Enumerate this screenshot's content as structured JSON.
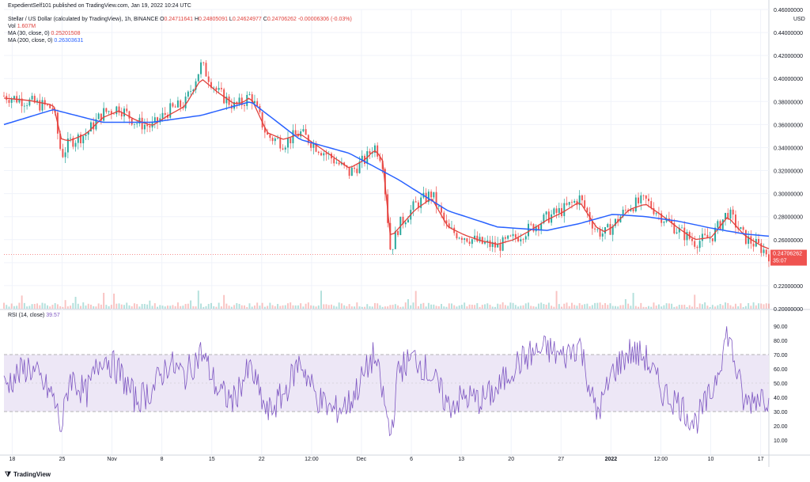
{
  "meta": {
    "publish_line": "ExpedientSelf101 published on TradingView.com, Jan 19, 2022 10:24 UTC",
    "brand": "TradingView"
  },
  "header": {
    "symbol_line": "Stellar / US Dollar (calculated by TradingView), 1h, BINANCE",
    "ohlc": [
      {
        "k": "O",
        "v": "0.24711641"
      },
      {
        "k": "H",
        "v": "0.24805091"
      },
      {
        "k": "L",
        "v": "0.24624977"
      },
      {
        "k": "C",
        "v": "0.24706262"
      },
      {
        "k": "",
        "v": "-0.00006306 (-0.03%)"
      }
    ],
    "vol_label": "Vol",
    "vol_value": "1.607M",
    "ma30_label": "MA (30, close, 0)",
    "ma30_value": "0.25201508",
    "ma200_label": "MA (200, close, 0)",
    "ma200_value": "0.26303631",
    "rsi_label": "RSI (14, close)",
    "rsi_value": "39.57"
  },
  "colors": {
    "up": "#26a69a",
    "down": "#ef5350",
    "ma30": "#e0413c",
    "ma200": "#2962ff",
    "rsi": "#7e57c2",
    "rsi_band": "#ede7f6",
    "grid": "#f0f3fa",
    "axis_text": "#131722"
  },
  "chart_data": [
    {
      "type": "candlestick",
      "title": "Stellar / US Dollar (calculated by TradingView), 1h, BINANCE",
      "price_axis_label": "USD",
      "ylim": [
        0.2,
        0.46
      ],
      "yticks": [
        "0.20000000",
        "0.22000000",
        "0.24000000",
        "0.26000000",
        "0.28000000",
        "0.30000000",
        "0.32000000",
        "0.34000000",
        "0.36000000",
        "0.38000000",
        "0.40000000",
        "0.42000000",
        "0.44000000",
        "0.46000000"
      ],
      "xticks": [
        "18",
        "25",
        "Nov",
        "8",
        "15",
        "22",
        "12:00",
        "Dec",
        "6",
        "13",
        "20",
        "27",
        "2022",
        "12:00",
        "10",
        "17"
      ],
      "grid": true,
      "last_price_label": "0.24706262",
      "countdown_label": "35:07",
      "series": [
        {
          "name": "Price (close)",
          "x_days": [
            0,
            3,
            6,
            7,
            8,
            10,
            12,
            14,
            16,
            18,
            20,
            22,
            24,
            26,
            27,
            28,
            29,
            30,
            32,
            34,
            36,
            38,
            40,
            42,
            44,
            45,
            46,
            47,
            48,
            50,
            52,
            54,
            56,
            58,
            60,
            62,
            64,
            66,
            68,
            70,
            72,
            73,
            74,
            76,
            78,
            80,
            82,
            84,
            86,
            88,
            90,
            92,
            93
          ],
          "values": [
            0.385,
            0.38,
            0.374,
            0.333,
            0.345,
            0.352,
            0.37,
            0.375,
            0.362,
            0.358,
            0.372,
            0.378,
            0.412,
            0.388,
            0.382,
            0.376,
            0.379,
            0.386,
            0.35,
            0.344,
            0.353,
            0.341,
            0.33,
            0.318,
            0.33,
            0.342,
            0.33,
            0.25,
            0.272,
            0.29,
            0.3,
            0.268,
            0.263,
            0.257,
            0.254,
            0.261,
            0.27,
            0.279,
            0.286,
            0.296,
            0.268,
            0.265,
            0.272,
            0.289,
            0.294,
            0.28,
            0.268,
            0.258,
            0.262,
            0.284,
            0.262,
            0.253,
            0.247
          ]
        },
        {
          "name": "MA (30, close, 0)",
          "x_days": [
            0,
            3,
            6,
            7,
            8,
            10,
            12,
            14,
            16,
            18,
            20,
            22,
            24,
            26,
            27,
            28,
            29,
            30,
            32,
            34,
            36,
            38,
            40,
            42,
            44,
            45,
            46,
            47,
            48,
            50,
            52,
            54,
            56,
            58,
            60,
            62,
            64,
            66,
            68,
            70,
            72,
            73,
            74,
            76,
            78,
            80,
            82,
            84,
            86,
            88,
            90,
            92,
            93
          ],
          "values": [
            0.383,
            0.381,
            0.377,
            0.347,
            0.346,
            0.352,
            0.366,
            0.372,
            0.364,
            0.359,
            0.368,
            0.376,
            0.4,
            0.388,
            0.383,
            0.378,
            0.379,
            0.384,
            0.353,
            0.347,
            0.352,
            0.342,
            0.332,
            0.322,
            0.33,
            0.338,
            0.331,
            0.262,
            0.27,
            0.286,
            0.296,
            0.271,
            0.264,
            0.259,
            0.256,
            0.26,
            0.268,
            0.277,
            0.284,
            0.293,
            0.271,
            0.267,
            0.271,
            0.286,
            0.291,
            0.281,
            0.27,
            0.26,
            0.262,
            0.28,
            0.264,
            0.255,
            0.252
          ]
        },
        {
          "name": "MA (200, close, 0)",
          "x_days": [
            0,
            6,
            12,
            18,
            24,
            30,
            36,
            42,
            48,
            54,
            60,
            66,
            70,
            74,
            78,
            82,
            86,
            90,
            93
          ],
          "values": [
            0.36,
            0.373,
            0.362,
            0.362,
            0.368,
            0.38,
            0.347,
            0.335,
            0.312,
            0.285,
            0.271,
            0.268,
            0.274,
            0.282,
            0.28,
            0.276,
            0.27,
            0.265,
            0.263
          ]
        }
      ]
    },
    {
      "type": "bar",
      "title": "Volume",
      "series": [
        {
          "name": "Vol",
          "last_value": "1.607M"
        }
      ]
    },
    {
      "type": "line",
      "title": "RSI (14, close)",
      "ylim": [
        0,
        95
      ],
      "yticks": [
        "10.00",
        "20.00",
        "30.00",
        "40.00",
        "50.00",
        "60.00",
        "70.00",
        "80.00",
        "90.00"
      ],
      "band": [
        30,
        70
      ],
      "series": [
        {
          "name": "RSI (14, close)",
          "x_days": [
            0,
            3,
            6,
            7,
            8,
            10,
            12,
            14,
            16,
            18,
            20,
            22,
            24,
            26,
            27,
            28,
            29,
            30,
            32,
            34,
            36,
            38,
            40,
            42,
            44,
            45,
            46,
            47,
            48,
            50,
            52,
            54,
            56,
            58,
            60,
            62,
            64,
            66,
            68,
            70,
            72,
            73,
            74,
            76,
            78,
            80,
            82,
            84,
            86,
            88,
            90,
            92,
            93
          ],
          "values": [
            48,
            62,
            40,
            18,
            55,
            42,
            70,
            58,
            38,
            45,
            64,
            55,
            72,
            45,
            40,
            38,
            52,
            60,
            28,
            42,
            66,
            40,
            30,
            36,
            58,
            70,
            44,
            12,
            60,
            68,
            55,
            34,
            40,
            38,
            45,
            62,
            70,
            74,
            68,
            78,
            28,
            40,
            58,
            72,
            68,
            44,
            36,
            22,
            42,
            86,
            35,
            42,
            39.57
          ]
        }
      ]
    }
  ]
}
